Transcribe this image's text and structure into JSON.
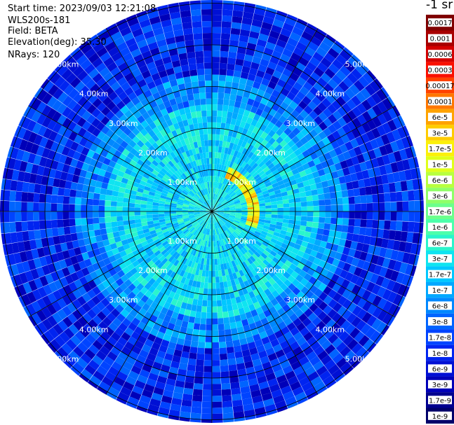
{
  "info": {
    "start_time": "Start time: 2023/09/03 12:21:08",
    "instrument": "WLS200s-181",
    "field": "Field: BETA",
    "elevation": "Elevation(deg): 35.30",
    "nrays": "NRays: 120"
  },
  "colorbar": {
    "unit": "-1 sr",
    "labels": [
      "0.0017",
      "0.001",
      "0.0006",
      "0.0003",
      "0.00017",
      "0.0001",
      "6e-5",
      "3e-5",
      "1.7e-5",
      "1e-5",
      "6e-6",
      "3e-6",
      "1.7e-6",
      "1e-6",
      "6e-7",
      "3e-7",
      "1.7e-7",
      "1e-7",
      "6e-8",
      "3e-8",
      "1.7e-8",
      "1e-8",
      "6e-9",
      "3e-9",
      "1.7e-9",
      "1e-9"
    ],
    "colors": [
      "#800000",
      "#a80000",
      "#d40000",
      "#fa0f00",
      "#ff4200",
      "#ff7700",
      "#ffa300",
      "#ffcc00",
      "#fbf00a",
      "#e0ff1a",
      "#b8ff3f",
      "#8fff68",
      "#6bff8c",
      "#4cffab",
      "#2af5cc",
      "#0fe4f0",
      "#00c8ff",
      "#00a8ff",
      "#0088ff",
      "#0064ff",
      "#0044ff",
      "#0024f0",
      "#0010d4",
      "#0000b8",
      "#00008f",
      "#00006a"
    ]
  },
  "chart_data": {
    "type": "heatmap",
    "projection": "polar-ppi",
    "field": "BETA",
    "rays": 120,
    "range_rings_km": [
      1,
      2,
      3,
      4,
      5
    ],
    "range_labels": [
      "1.00km",
      "2.00km",
      "3.00km",
      "4.00km",
      "5.00km"
    ],
    "azimuth_spoke_step_deg": 30,
    "max_range_km": 5.0,
    "color_scale": "log",
    "value_range": [
      1e-09,
      0.0017
    ],
    "description_of_features": {
      "background_range_km": [
        3.2,
        5.0
      ],
      "background_value": 1e-08,
      "mid_range_value": 1.7e-07,
      "inner_range_value": 3e-07,
      "arc_feature": {
        "range_km": 1.0,
        "azimuth_deg": [
          20,
          110
        ],
        "value": 1e-05
      }
    }
  }
}
